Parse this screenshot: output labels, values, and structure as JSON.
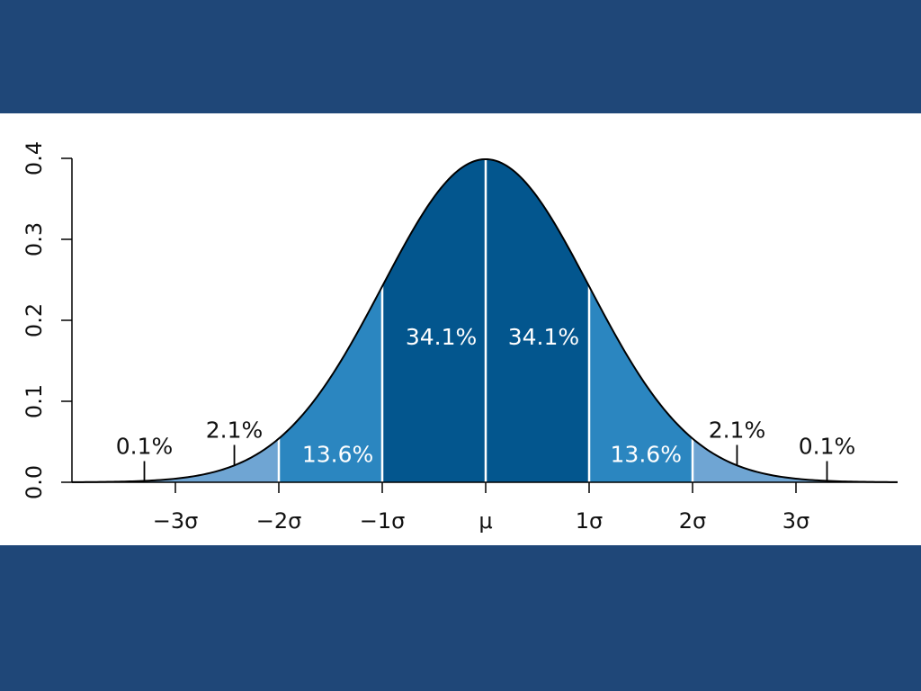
{
  "frame": {
    "band_color": "#1f4778"
  },
  "chart_data": {
    "type": "area",
    "title": "",
    "xlabel": "",
    "ylabel": "",
    "xlim": [
      -4,
      4
    ],
    "ylim": [
      0,
      0.4
    ],
    "x_ticks": [
      {
        "value": -3,
        "label": "−3σ"
      },
      {
        "value": -2,
        "label": "−2σ"
      },
      {
        "value": -1,
        "label": "−1σ"
      },
      {
        "value": 0,
        "label": "μ"
      },
      {
        "value": 1,
        "label": "1σ"
      },
      {
        "value": 2,
        "label": "2σ"
      },
      {
        "value": 3,
        "label": "3σ"
      }
    ],
    "y_ticks": [
      {
        "value": 0.0,
        "label": "0.0"
      },
      {
        "value": 0.1,
        "label": "0.1"
      },
      {
        "value": 0.2,
        "label": "0.2"
      },
      {
        "value": 0.3,
        "label": "0.3"
      },
      {
        "value": 0.4,
        "label": "0.4"
      }
    ],
    "curve": "normal density, mean 0, standard deviation 1",
    "grid": false,
    "regions": [
      {
        "from": -4,
        "to": -3,
        "percent": 0.1,
        "label": "0.1%",
        "color": "#6fa5d3"
      },
      {
        "from": -3,
        "to": -2,
        "percent": 2.1,
        "label": "2.1%",
        "color": "#6fa5d3"
      },
      {
        "from": -2,
        "to": -1,
        "percent": 13.6,
        "label": "13.6%",
        "color": "#2b86c0"
      },
      {
        "from": -1,
        "to": 0,
        "percent": 34.1,
        "label": "34.1%",
        "color": "#03568e"
      },
      {
        "from": 0,
        "to": 1,
        "percent": 34.1,
        "label": "34.1%",
        "color": "#03568e"
      },
      {
        "from": 1,
        "to": 2,
        "percent": 13.6,
        "label": "13.6%",
        "color": "#2b86c0"
      },
      {
        "from": 2,
        "to": 3,
        "percent": 2.1,
        "label": "2.1%",
        "color": "#6fa5d3"
      },
      {
        "from": 3,
        "to": 4,
        "percent": 0.1,
        "label": "0.1%",
        "color": "#6fa5d3"
      }
    ]
  }
}
